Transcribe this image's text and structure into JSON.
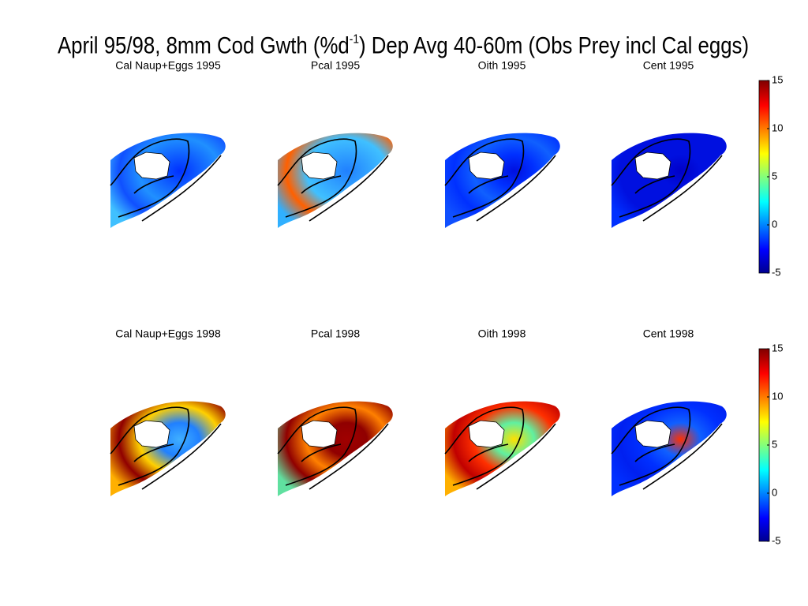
{
  "title_parts": [
    "April 95/98, 8mm Cod Gwth (%d",
    "-1",
    ") Dep Avg 40-60m (Obs Prey incl Cal eggs)"
  ],
  "panels": [
    {
      "title": "Cal Naup+Eggs 1995"
    },
    {
      "title": "Pcal 1995"
    },
    {
      "title": "Oith 1995"
    },
    {
      "title": "Cent 1995"
    },
    {
      "title": "Cal Naup+Eggs 1998"
    },
    {
      "title": "Pcal 1998"
    },
    {
      "title": "Oith 1998"
    },
    {
      "title": "Cent 1998"
    }
  ],
  "colorbars": [
    {
      "lim": [
        -5,
        15
      ],
      "ticks": [
        -5,
        0,
        5,
        10,
        15
      ]
    },
    {
      "lim": [
        -5,
        15
      ],
      "ticks": [
        -5,
        0,
        5,
        10,
        15
      ]
    }
  ]
}
